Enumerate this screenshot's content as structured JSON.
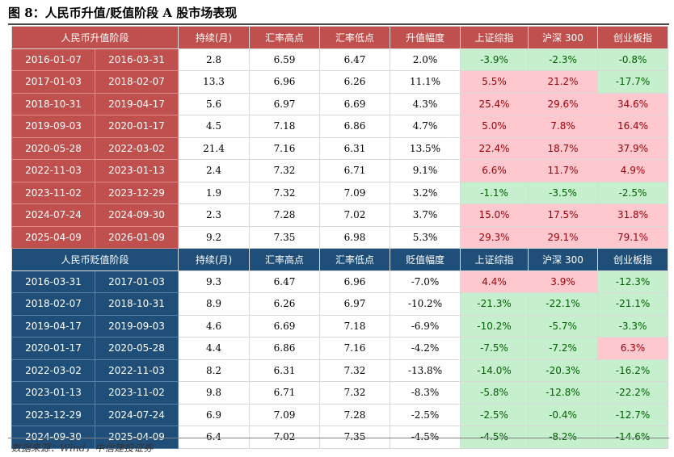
{
  "title": "图 8：人民币升值/贬值阶段 A 股市场表现",
  "source": "数据来源：Wind，中信建投证券",
  "colors": {
    "appreciation_header": "#c0504d",
    "depreciation_header": "#1f4e79",
    "positive_fill": "#ffc7ce",
    "negative_fill": "#c6efce"
  },
  "appreciation": {
    "headers": {
      "period": "人民币升值阶段",
      "duration": "持续(月)",
      "high": "汇率高点",
      "low": "汇率低点",
      "change": "升值幅度",
      "sh": "上证综指",
      "hs300": "沪深 300",
      "gem": "创业板指"
    },
    "rows": [
      {
        "start": "2016-01-07",
        "end": "2016-03-31",
        "duration": "2.8",
        "high": "6.59",
        "low": "6.47",
        "change": "2.0%",
        "sh": "-3.9%",
        "hs300": "-2.3%",
        "gem": "-0.8%"
      },
      {
        "start": "2017-01-03",
        "end": "2018-02-07",
        "duration": "13.3",
        "high": "6.96",
        "low": "6.26",
        "change": "11.1%",
        "sh": "5.5%",
        "hs300": "21.2%",
        "gem": "-17.7%"
      },
      {
        "start": "2018-10-31",
        "end": "2019-04-17",
        "duration": "5.6",
        "high": "6.97",
        "low": "6.69",
        "change": "4.3%",
        "sh": "25.4%",
        "hs300": "29.6%",
        "gem": "34.6%"
      },
      {
        "start": "2019-09-03",
        "end": "2020-01-17",
        "duration": "4.5",
        "high": "7.18",
        "low": "6.86",
        "change": "4.7%",
        "sh": "5.0%",
        "hs300": "7.8%",
        "gem": "16.4%"
      },
      {
        "start": "2020-05-28",
        "end": "2022-03-02",
        "duration": "21.4",
        "high": "7.16",
        "low": "6.31",
        "change": "13.5%",
        "sh": "22.4%",
        "hs300": "18.7%",
        "gem": "37.9%"
      },
      {
        "start": "2022-11-03",
        "end": "2023-01-13",
        "duration": "2.4",
        "high": "7.32",
        "low": "6.71",
        "change": "9.1%",
        "sh": "6.6%",
        "hs300": "11.7%",
        "gem": "4.9%"
      },
      {
        "start": "2023-11-02",
        "end": "2023-12-29",
        "duration": "1.9",
        "high": "7.32",
        "low": "7.09",
        "change": "3.2%",
        "sh": "-1.1%",
        "hs300": "-3.5%",
        "gem": "-2.5%"
      },
      {
        "start": "2024-07-24",
        "end": "2024-09-30",
        "duration": "2.3",
        "high": "7.28",
        "low": "7.02",
        "change": "3.7%",
        "sh": "15.0%",
        "hs300": "17.5%",
        "gem": "31.8%"
      },
      {
        "start": "2025-04-09",
        "end": "2026-01-09",
        "duration": "9.2",
        "high": "7.35",
        "low": "6.98",
        "change": "5.3%",
        "sh": "29.3%",
        "hs300": "29.1%",
        "gem": "79.1%"
      }
    ]
  },
  "depreciation": {
    "headers": {
      "period": "人民币贬值阶段",
      "duration": "持续(月)",
      "high": "汇率高点",
      "low": "汇率低点",
      "change": "贬值幅度",
      "sh": "上证综指",
      "hs300": "沪深 300",
      "gem": "创业板指"
    },
    "rows": [
      {
        "start": "2016-03-31",
        "end": "2017-01-03",
        "duration": "9.3",
        "high": "6.47",
        "low": "6.96",
        "change": "-7.0%",
        "sh": "4.4%",
        "hs300": "3.9%",
        "gem": "-12.3%"
      },
      {
        "start": "2018-02-07",
        "end": "2018-10-31",
        "duration": "8.9",
        "high": "6.26",
        "low": "6.97",
        "change": "-10.2%",
        "sh": "-21.3%",
        "hs300": "-22.1%",
        "gem": "-21.1%"
      },
      {
        "start": "2019-04-17",
        "end": "2019-09-03",
        "duration": "4.6",
        "high": "6.69",
        "low": "7.18",
        "change": "-6.9%",
        "sh": "-10.2%",
        "hs300": "-5.7%",
        "gem": "-3.3%"
      },
      {
        "start": "2020-01-17",
        "end": "2020-05-28",
        "duration": "4.4",
        "high": "6.86",
        "low": "7.16",
        "change": "-4.2%",
        "sh": "-7.5%",
        "hs300": "-7.2%",
        "gem": "6.3%"
      },
      {
        "start": "2022-03-02",
        "end": "2022-11-03",
        "duration": "8.2",
        "high": "6.31",
        "low": "7.32",
        "change": "-13.8%",
        "sh": "-14.0%",
        "hs300": "-20.3%",
        "gem": "-16.2%"
      },
      {
        "start": "2023-01-13",
        "end": "2023-11-02",
        "duration": "9.8",
        "high": "6.71",
        "low": "7.32",
        "change": "-8.3%",
        "sh": "-5.8%",
        "hs300": "-12.8%",
        "gem": "-22.2%"
      },
      {
        "start": "2023-12-29",
        "end": "2024-07-24",
        "duration": "6.9",
        "high": "7.09",
        "low": "7.28",
        "change": "-2.5%",
        "sh": "-2.5%",
        "hs300": "-0.4%",
        "gem": "-12.7%"
      },
      {
        "start": "2024-09-30",
        "end": "2025-04-09",
        "duration": "6.4",
        "high": "7.02",
        "low": "7.35",
        "change": "-4.5%",
        "sh": "-4.5%",
        "hs300": "-8.2%",
        "gem": "-14.6%"
      }
    ]
  }
}
